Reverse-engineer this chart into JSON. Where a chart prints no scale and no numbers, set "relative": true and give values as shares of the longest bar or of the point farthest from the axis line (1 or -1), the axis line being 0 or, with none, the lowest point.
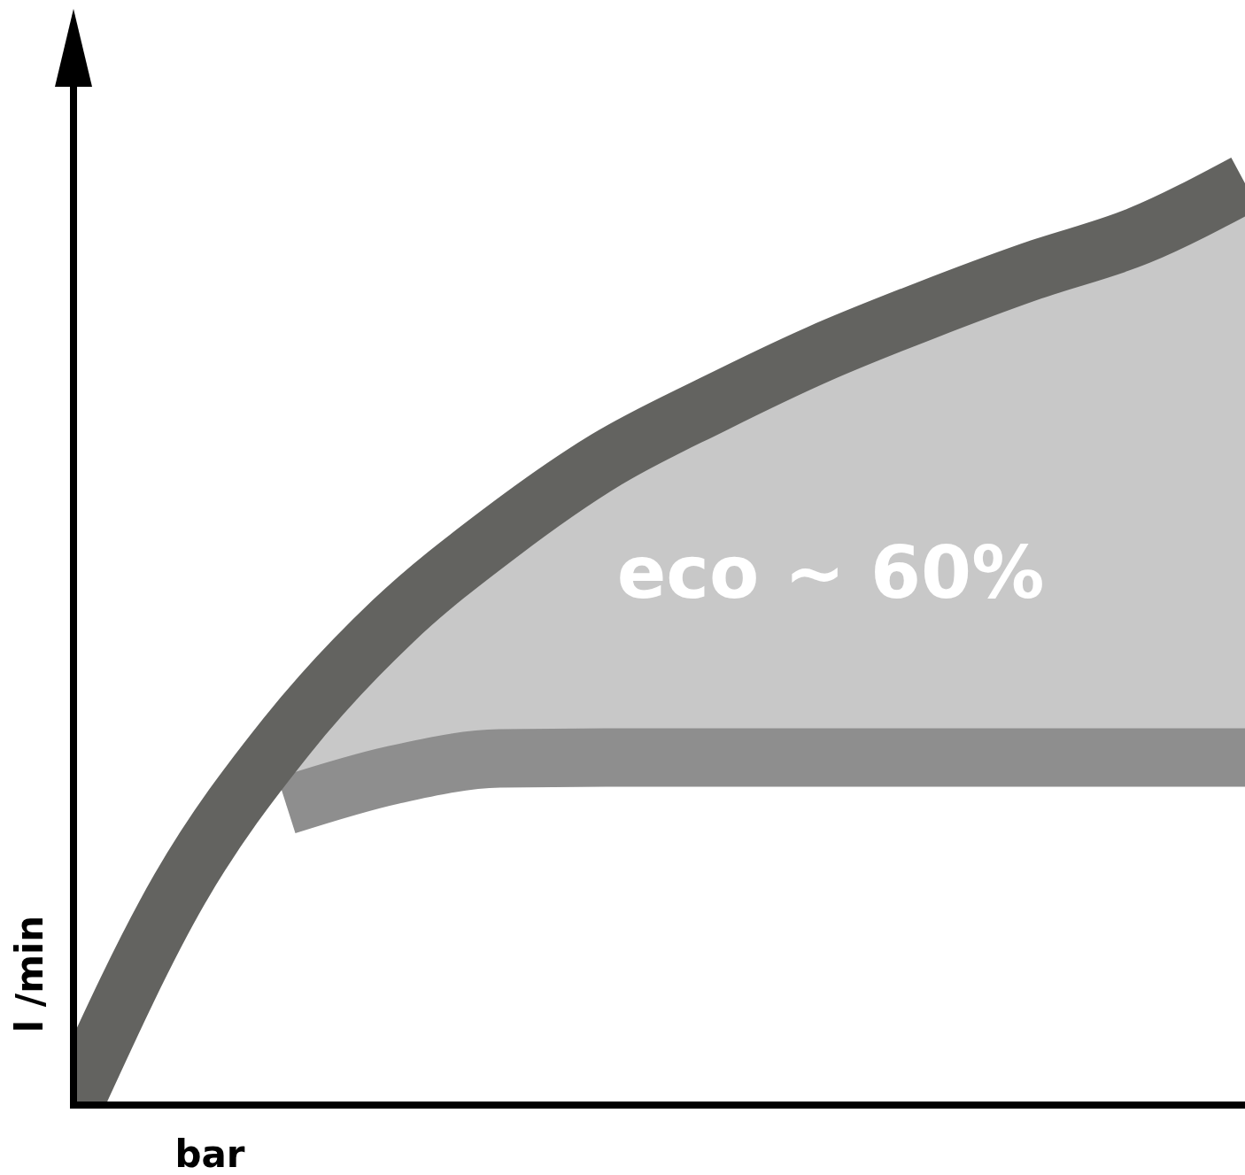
{
  "chart_data": {
    "type": "line",
    "relative": true,
    "xlabel": "bar",
    "ylabel": "l /min",
    "categories": [
      null,
      null,
      null,
      null,
      null,
      null,
      null,
      null,
      null,
      null,
      null,
      null
    ],
    "series": [
      {
        "color": "#636360",
        "values": [
          0,
          0.235,
          0.4,
          0.525,
          0.62,
          0.7,
          0.76,
          0.815,
          0.862,
          0.905,
          0.943,
          1
        ],
        "lower": [
          null,
          null,
          0.325,
          0.358,
          0.376,
          0.377,
          0.377,
          0.377,
          0.377,
          0.377,
          0.377,
          0.377
        ],
        "upper": [
          null,
          null,
          0.4,
          0.525,
          0.62,
          0.7,
          0.76,
          0.815,
          0.862,
          0.905,
          0.943,
          1
        ]
      },
      {
        "color": "#8e8e8e",
        "values": [
          null,
          null,
          0.325,
          0.358,
          0.376,
          0.377,
          0.377,
          0.377,
          0.377,
          0.377,
          0.377,
          0.377
        ]
      }
    ],
    "annotations": [
      "eco ~ 60%"
    ],
    "line_style": "solid",
    "marker": "none"
  }
}
